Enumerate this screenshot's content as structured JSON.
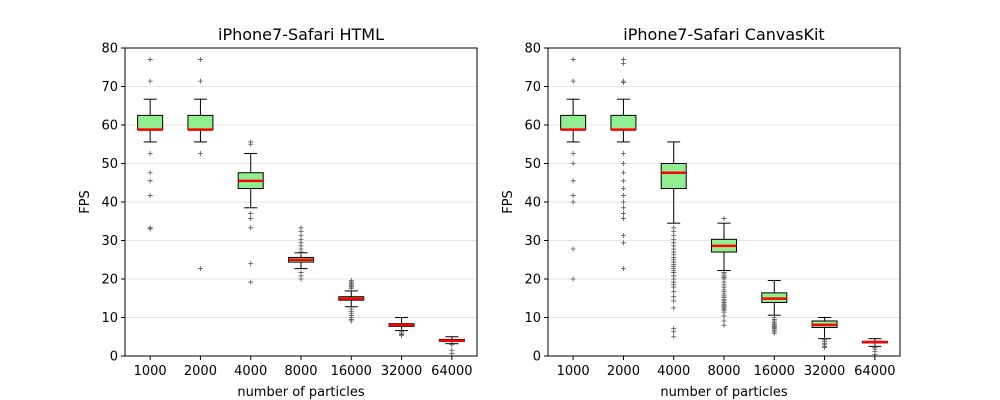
{
  "chart_data": [
    {
      "type": "box",
      "title": "iPhone7-Safari HTML",
      "xlabel": "number of particles",
      "ylabel": "FPS",
      "ylim": [
        0,
        80
      ],
      "yticks": [
        0,
        10,
        20,
        30,
        40,
        50,
        60,
        70,
        80
      ],
      "grid": "y",
      "categories": [
        "1000",
        "2000",
        "4000",
        "8000",
        "16000",
        "32000",
        "64000"
      ],
      "box_color": "#90ee90",
      "median_color": "#ff0000",
      "boxes": [
        {
          "whislo": 55.6,
          "q1": 58.8,
          "med": 58.8,
          "q3": 62.5,
          "whishi": 66.7,
          "fliers": [
            77,
            71.4,
            52.6,
            47.6,
            45.5,
            41.7,
            33.3,
            33.0
          ]
        },
        {
          "whislo": 55.6,
          "q1": 58.8,
          "med": 58.8,
          "q3": 62.5,
          "whishi": 66.7,
          "fliers": [
            77,
            71.4,
            52.6,
            22.7
          ]
        },
        {
          "whislo": 38.5,
          "q1": 43.5,
          "med": 45.5,
          "q3": 47.6,
          "whishi": 52.6,
          "fliers": [
            55.6,
            55.0,
            37.0,
            35.7,
            33.3,
            24.0,
            19.2
          ]
        },
        {
          "whislo": 22.7,
          "q1": 24.4,
          "med": 25.0,
          "q3": 25.6,
          "whishi": 26.8,
          "fliers": [
            33.3,
            32.3,
            31.3,
            30.3,
            29.4,
            28.6,
            27.8,
            27.0,
            21.7,
            20.8,
            20.0
          ]
        },
        {
          "whislo": 12.8,
          "q1": 14.5,
          "med": 14.9,
          "q3": 15.4,
          "whishi": 16.9,
          "fliers": [
            19.6,
            19.2,
            18.9,
            18.5,
            18.2,
            17.9,
            17.5,
            12.2,
            11.6,
            11.1,
            10.5,
            10.0,
            9.5,
            9.1
          ]
        },
        {
          "whislo": 6.6,
          "q1": 7.7,
          "med": 8.1,
          "q3": 8.4,
          "whishi": 10.0,
          "fliers": [
            6.3,
            5.9,
            5.6,
            5.3
          ]
        },
        {
          "whislo": 3.2,
          "q1": 3.8,
          "med": 4.0,
          "q3": 4.3,
          "whishi": 5.0,
          "fliers": [
            2.9,
            1.5,
            0.6
          ]
        }
      ]
    },
    {
      "type": "box",
      "title": "iPhone7-Safari CanvasKit",
      "xlabel": "number of particles",
      "ylabel": "FPS",
      "ylim": [
        0,
        80
      ],
      "yticks": [
        0,
        10,
        20,
        30,
        40,
        50,
        60,
        70,
        80
      ],
      "grid": "y",
      "categories": [
        "1000",
        "2000",
        "4000",
        "8000",
        "16000",
        "32000",
        "64000"
      ],
      "box_color": "#90ee90",
      "median_color": "#ff0000",
      "boxes": [
        {
          "whislo": 55.6,
          "q1": 58.8,
          "med": 58.8,
          "q3": 62.5,
          "whishi": 66.7,
          "fliers": [
            77,
            71.4,
            52.6,
            50,
            45.5,
            41.7,
            40,
            27.8,
            20
          ]
        },
        {
          "whislo": 55.6,
          "q1": 58.8,
          "med": 58.8,
          "q3": 62.5,
          "whishi": 66.7,
          "fliers": [
            77,
            76,
            71.4,
            71,
            52.6,
            50,
            47.6,
            45.5,
            43.5,
            41.7,
            40,
            38.5,
            37,
            35.7,
            31.3,
            29.4,
            22.7
          ]
        },
        {
          "whislo": 34.5,
          "q1": 43.5,
          "med": 47.6,
          "q3": 50.0,
          "whishi": 55.6,
          "fliers": [
            33.3,
            32.3,
            31.3,
            30.3,
            29.4,
            28.6,
            27.8,
            27,
            26.3,
            25.6,
            25,
            24.4,
            23.8,
            23.3,
            22.7,
            22.2,
            21.7,
            20.8,
            20,
            19.2,
            18.5,
            17.9,
            16.7,
            15.4,
            14.3,
            12.5,
            7.1,
            6.3,
            5.0
          ]
        },
        {
          "whislo": 22.2,
          "q1": 27.0,
          "med": 28.6,
          "q3": 30.3,
          "whishi": 34.5,
          "fliers": [
            35.7,
            21.7,
            21.3,
            20.8,
            20.4,
            20,
            19.2,
            18.5,
            17.9,
            17.2,
            16.7,
            16.1,
            15.6,
            15.2,
            14.7,
            14.3,
            13.9,
            13.5,
            13.2,
            12.8,
            12.5,
            12.2,
            11.9,
            11.4,
            10.4,
            9.1,
            8.0
          ]
        },
        {
          "whislo": 10.6,
          "q1": 13.9,
          "med": 14.9,
          "q3": 16.4,
          "whishi": 19.6,
          "fliers": [
            10.0,
            9.5,
            9.1,
            8.7,
            8.3,
            8.0,
            7.7,
            7.4,
            7.1,
            6.7,
            6.3,
            5.9
          ]
        },
        {
          "whislo": 4.5,
          "q1": 7.4,
          "med": 8.1,
          "q3": 9.1,
          "whishi": 10.0,
          "fliers": [
            4.2,
            3.8,
            3.3,
            2.9,
            2.5,
            2.2
          ]
        },
        {
          "whislo": 2.5,
          "q1": 3.4,
          "med": 3.6,
          "q3": 3.8,
          "whishi": 4.5,
          "fliers": [
            2.2,
            1.8,
            1.2,
            0.4
          ]
        }
      ]
    }
  ]
}
